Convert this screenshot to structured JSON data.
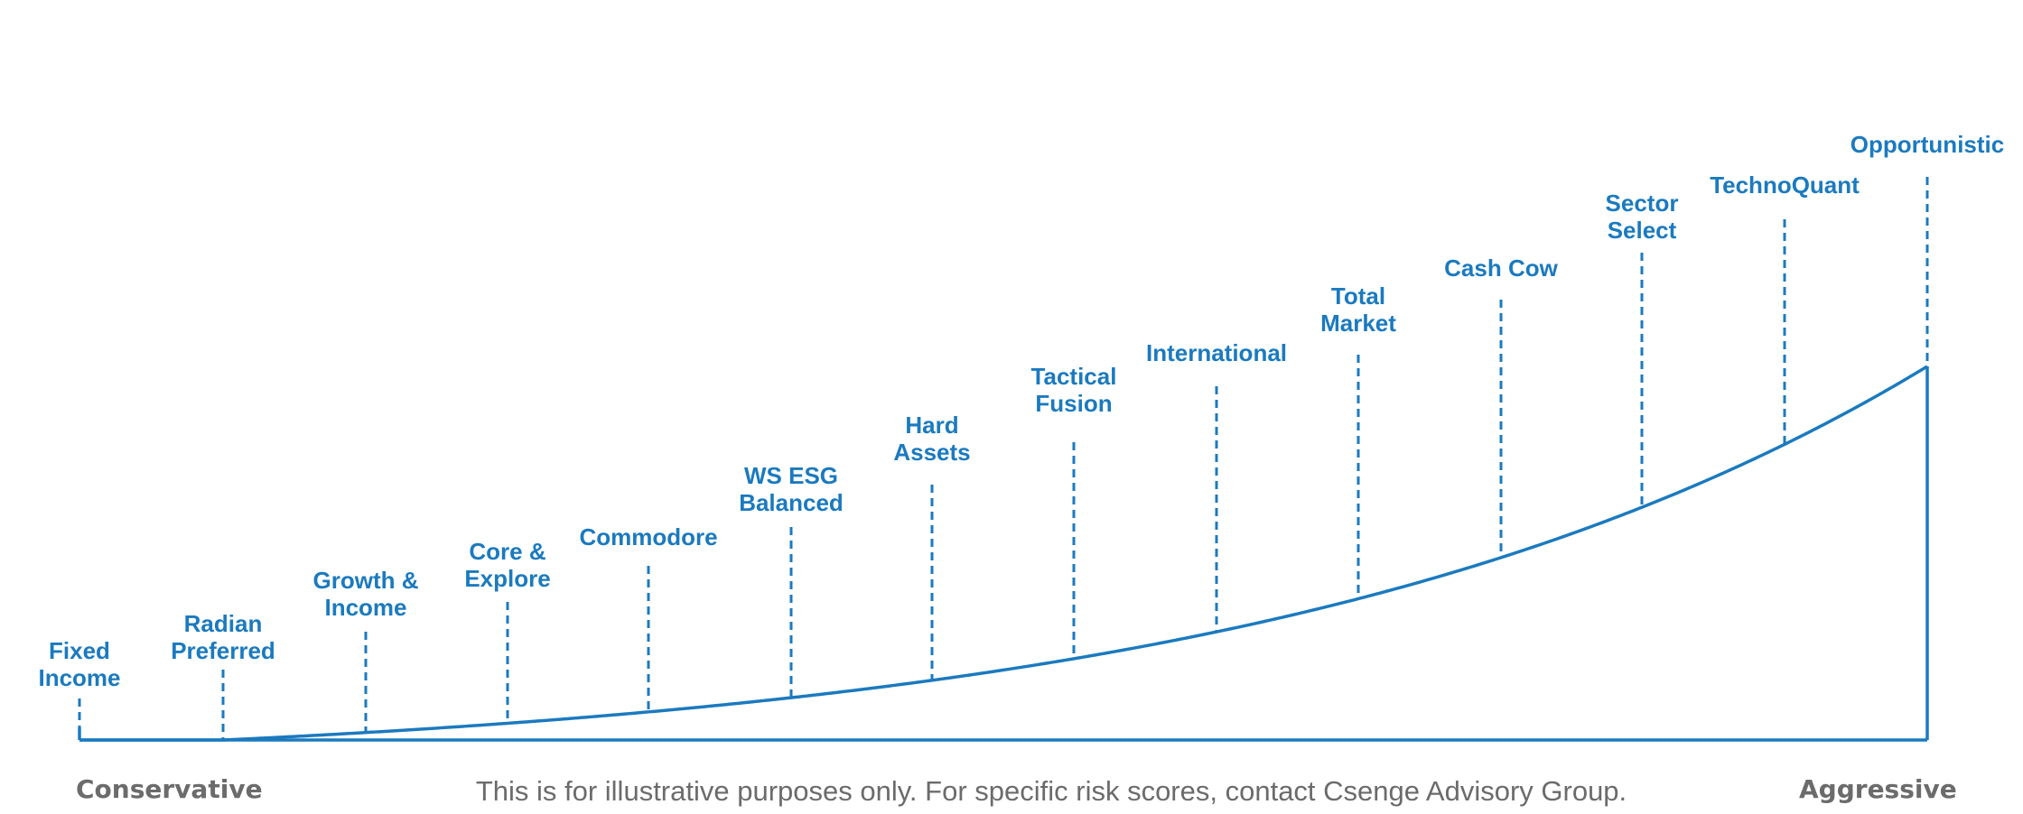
{
  "colors": {
    "accent": "#1b7abf",
    "caption_gray": "#6b6b6b",
    "background": "#ffffff"
  },
  "strategies": [
    {
      "lines": [
        "Fixed",
        "Income"
      ]
    },
    {
      "lines": [
        "Radian",
        "Preferred"
      ]
    },
    {
      "lines": [
        "Growth &",
        "Income"
      ]
    },
    {
      "lines": [
        "Core &",
        "Explore"
      ]
    },
    {
      "lines": [
        "Commodore"
      ]
    },
    {
      "lines": [
        "WS ESG",
        "Balanced"
      ]
    },
    {
      "lines": [
        "Hard",
        "Assets"
      ]
    },
    {
      "lines": [
        "Tactical",
        "Fusion"
      ]
    },
    {
      "lines": [
        "International"
      ]
    },
    {
      "lines": [
        "Total",
        "Market"
      ]
    },
    {
      "lines": [
        "Cash Cow"
      ]
    },
    {
      "lines": [
        "Sector",
        "Select"
      ]
    },
    {
      "lines": [
        "TechnoQuant"
      ]
    },
    {
      "lines": [
        "Opportunistic"
      ]
    }
  ],
  "axis": {
    "left_label": "Conservative",
    "right_label": "Aggressive"
  },
  "disclaimer": "This is for illustrative purposes only. For specific risk scores, contact Csenge Advisory Group."
}
